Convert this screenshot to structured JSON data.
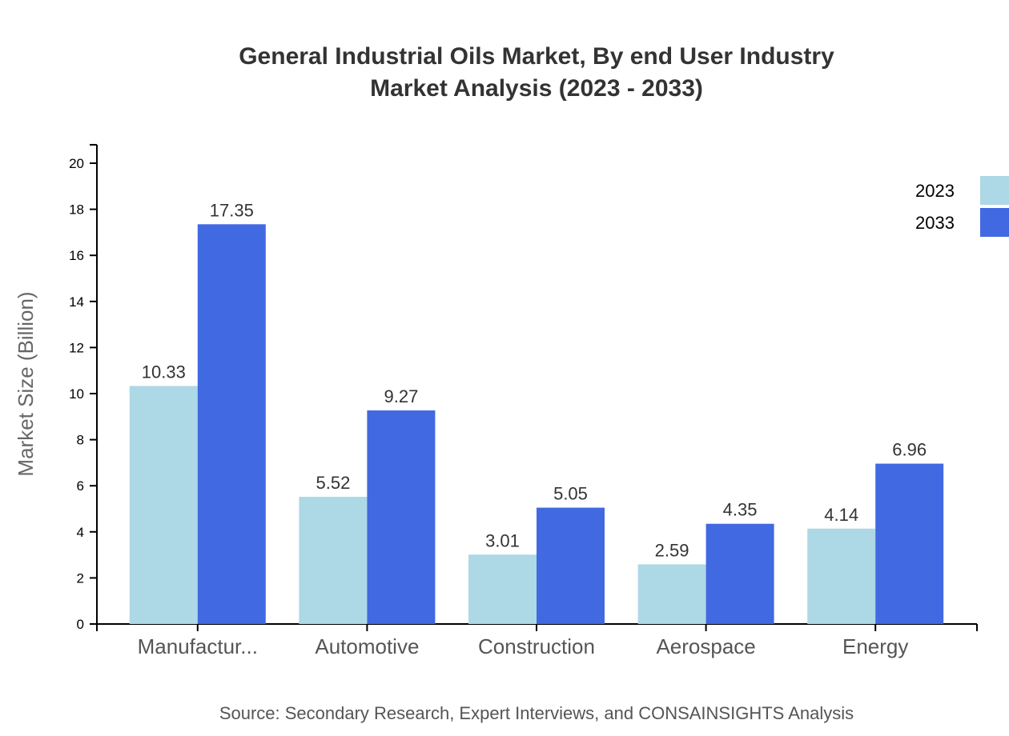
{
  "chart_data": {
    "type": "bar",
    "title": "General Industrial Oils Market, By end User Industry",
    "subtitle": "Market Analysis (2023 - 2033)",
    "ylabel": "Market Size (Billion)",
    "xlabel": "",
    "source": "Source: Secondary Research, Expert Interviews, and CONSAINSIGHTS Analysis",
    "categories": [
      "Manufactur...",
      "Automotive",
      "Construction",
      "Aerospace",
      "Energy"
    ],
    "series": [
      {
        "name": "2023",
        "color": "#add8e6",
        "values": [
          10.33,
          5.52,
          3.01,
          2.59,
          4.14
        ]
      },
      {
        "name": "2033",
        "color": "#4169e1",
        "values": [
          17.35,
          9.27,
          5.05,
          4.35,
          6.96
        ]
      }
    ],
    "ylim": [
      0,
      20.8
    ],
    "yticks": [
      0,
      2,
      4,
      6,
      8,
      10,
      12,
      14,
      16,
      18,
      20
    ],
    "grid": false,
    "legend": "top-right"
  }
}
